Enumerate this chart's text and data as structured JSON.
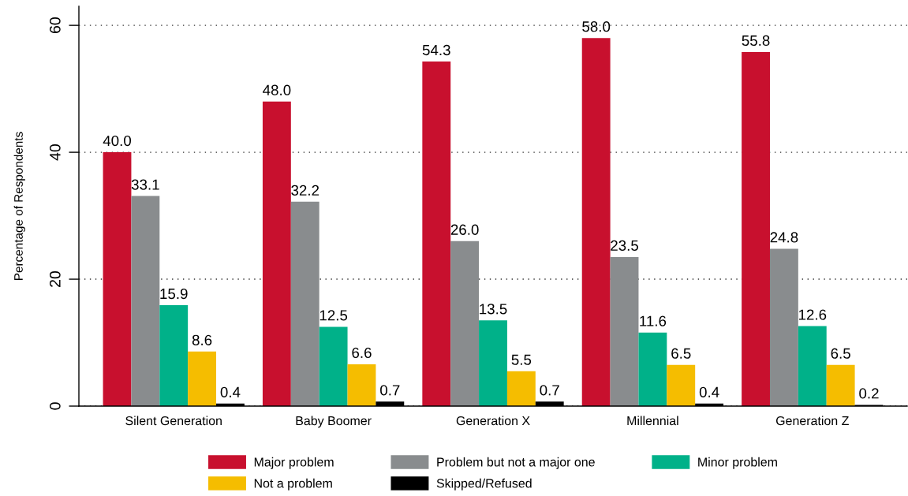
{
  "chart_data": {
    "type": "bar",
    "ylabel": "Percentage of Respondents",
    "categories": [
      "Silent Generation",
      "Baby Boomer",
      "Generation X",
      "Millennial",
      "Generation Z"
    ],
    "series": [
      {
        "name": "Major problem",
        "color": "#c8102e",
        "values": [
          40.0,
          48.0,
          54.3,
          58.0,
          55.8
        ],
        "value_labels": [
          "40.0",
          "48.0",
          "54.3",
          "58.0",
          "55.8"
        ]
      },
      {
        "name": "Problem but not a major one",
        "color": "#898c8e",
        "values": [
          33.1,
          32.2,
          26.0,
          23.5,
          24.8
        ],
        "value_labels": [
          "33.1",
          "32.2",
          "26.0",
          "23.5",
          "24.8"
        ]
      },
      {
        "name": "Minor problem",
        "color": "#00b189",
        "values": [
          15.9,
          12.5,
          13.5,
          11.6,
          12.6
        ],
        "value_labels": [
          "15.9",
          "12.5",
          "13.5",
          "11.6",
          "12.6"
        ]
      },
      {
        "name": "Not a problem",
        "color": "#f5bd00",
        "values": [
          8.6,
          6.6,
          5.5,
          6.5,
          6.5
        ],
        "value_labels": [
          "8.6",
          "6.6",
          "5.5",
          "6.5",
          "6.5"
        ]
      },
      {
        "name": "Skipped/Refused",
        "color": "#000000",
        "values": [
          0.4,
          0.7,
          0.7,
          0.4,
          0.2
        ],
        "value_labels": [
          "0.4",
          "0.7",
          "0.7",
          "0.4",
          "0.2"
        ]
      }
    ],
    "ylim": [
      0,
      63
    ],
    "yticks": [
      0,
      20,
      40,
      60
    ],
    "grid": "y",
    "legend": "bottom"
  }
}
